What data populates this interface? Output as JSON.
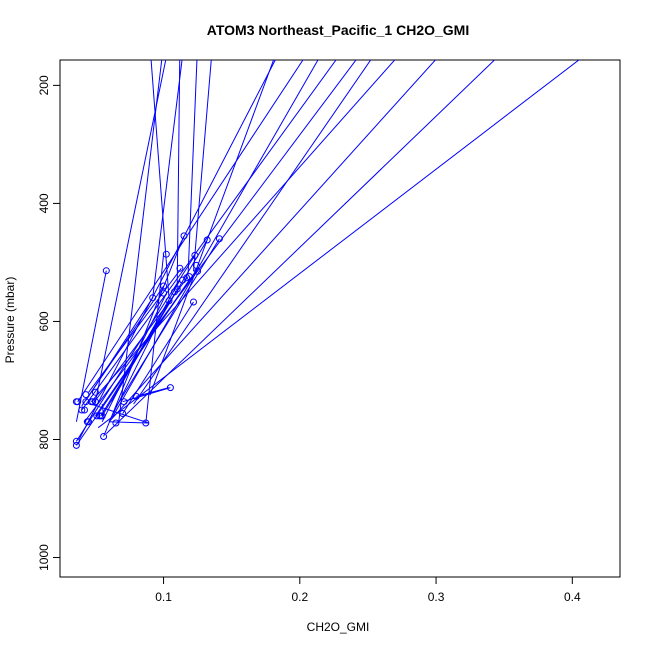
{
  "chart_data": {
    "type": "line",
    "title": "ATOM3 Northeast_Pacific_1 CH2O_GMI",
    "xlabel": "CH2O_GMI",
    "ylabel": "Pressure (mbar)",
    "xlim": [
      0.024,
      0.435
    ],
    "ylim": [
      1033,
      157
    ],
    "y_reversed": true,
    "x_ticks": [
      0.1,
      0.2,
      0.3,
      0.4
    ],
    "x_tick_labels": [
      "0.1",
      "0.2",
      "0.3",
      "0.4"
    ],
    "y_ticks": [
      200,
      400,
      600,
      800,
      1000
    ],
    "y_tick_labels": [
      "200",
      "400",
      "600",
      "800",
      "1000"
    ],
    "grid": false,
    "legend": "none",
    "colors": {
      "series": "#0000ff",
      "axis": "#000000"
    },
    "markers": "open-circle",
    "lines": [
      [
        [
          0.056,
          795
        ],
        [
          0.115,
          455
        ]
      ],
      [
        [
          0.087,
          772
        ],
        [
          0.1,
          486
        ]
      ],
      [
        [
          0.067,
          772
        ],
        [
          0.1,
          130
        ]
      ],
      [
        [
          0.036,
          770
        ],
        [
          0.058,
          514
        ]
      ],
      [
        [
          0.055,
          760
        ],
        [
          0.132,
          462
        ]
      ],
      [
        [
          0.036,
          810
        ],
        [
          0.125,
          510
        ]
      ],
      [
        [
          0.036,
          803
        ],
        [
          0.123,
          488
        ]
      ],
      [
        [
          0.07,
          756
        ],
        [
          0.122,
          567
        ]
      ],
      [
        [
          0.04,
          743
        ],
        [
          0.1,
          540
        ]
      ],
      [
        [
          0.043,
          734
        ],
        [
          0.092,
          560
        ]
      ],
      [
        [
          0.045,
          720
        ],
        [
          0.113,
          510
        ]
      ],
      [
        [
          0.048,
          740
        ],
        [
          0.118,
          524
        ]
      ],
      [
        [
          0.05,
          760
        ],
        [
          0.12,
          526
        ]
      ],
      [
        [
          0.055,
          770
        ],
        [
          0.102,
          553
        ]
      ],
      [
        [
          0.06,
          770
        ],
        [
          0.104,
          565
        ]
      ],
      [
        [
          0.054,
          760
        ],
        [
          0.109,
          550
        ]
      ],
      [
        [
          0.062,
          736
        ],
        [
          0.112,
          530
        ]
      ],
      [
        [
          0.065,
          745
        ],
        [
          0.141,
          460
        ]
      ],
      [
        [
          0.037,
          736
        ],
        [
          0.21,
          130
        ]
      ],
      [
        [
          0.04,
          750
        ],
        [
          0.235,
          130
        ]
      ],
      [
        [
          0.042,
          770
        ],
        [
          0.25,
          130
        ]
      ],
      [
        [
          0.038,
          800
        ],
        [
          0.188,
          130
        ]
      ],
      [
        [
          0.047,
          736
        ],
        [
          0.28,
          130
        ]
      ],
      [
        [
          0.06,
          770
        ],
        [
          0.31,
          130
        ]
      ],
      [
        [
          0.052,
          780
        ],
        [
          0.42,
          130
        ]
      ],
      [
        [
          0.058,
          790
        ],
        [
          0.355,
          130
        ]
      ],
      [
        [
          0.063,
          760
        ],
        [
          0.22,
          130
        ]
      ],
      [
        [
          0.078,
          740
        ],
        [
          0.26,
          130
        ]
      ],
      [
        [
          0.09,
          725
        ],
        [
          0.185,
          130
        ]
      ],
      [
        [
          0.07,
          736
        ],
        [
          0.105,
          712
        ]
      ],
      [
        [
          0.08,
          727
        ],
        [
          0.104,
          712
        ]
      ],
      [
        [
          0.05,
          736
        ],
        [
          0.104,
          130
        ]
      ],
      [
        [
          0.047,
          740
        ],
        [
          0.089,
          772
        ]
      ],
      [
        [
          0.11,
          545
        ],
        [
          0.112,
          130
        ]
      ],
      [
        [
          0.118,
          520
        ],
        [
          0.125,
          130
        ]
      ],
      [
        [
          0.092,
          560
        ],
        [
          0.115,
          130
        ]
      ],
      [
        [
          0.122,
          515
        ],
        [
          0.136,
          130
        ]
      ],
      [
        [
          0.104,
          560
        ],
        [
          0.09,
          130
        ]
      ],
      [
        [
          0.06,
          770
        ],
        [
          0.089,
          772
        ]
      ],
      [
        [
          0.056,
          760
        ],
        [
          0.055,
          740
        ]
      ]
    ],
    "points": [
      [
        0.036,
        810
      ],
      [
        0.036,
        803
      ],
      [
        0.036,
        736
      ],
      [
        0.037,
        736
      ],
      [
        0.04,
        750
      ],
      [
        0.042,
        750
      ],
      [
        0.043,
        724
      ],
      [
        0.043,
        736
      ],
      [
        0.044,
        770
      ],
      [
        0.045,
        770
      ],
      [
        0.047,
        736
      ],
      [
        0.048,
        736
      ],
      [
        0.05,
        736
      ],
      [
        0.05,
        720
      ],
      [
        0.051,
        760
      ],
      [
        0.053,
        760
      ],
      [
        0.054,
        760
      ],
      [
        0.055,
        760
      ],
      [
        0.056,
        795
      ],
      [
        0.058,
        514
      ],
      [
        0.065,
        772
      ],
      [
        0.07,
        756
      ],
      [
        0.071,
        736
      ],
      [
        0.08,
        727
      ],
      [
        0.087,
        772
      ],
      [
        0.092,
        560
      ],
      [
        0.1,
        540
      ],
      [
        0.1,
        552
      ],
      [
        0.102,
        486
      ],
      [
        0.104,
        565
      ],
      [
        0.105,
        712
      ],
      [
        0.108,
        550
      ],
      [
        0.11,
        545
      ],
      [
        0.112,
        510
      ],
      [
        0.114,
        530
      ],
      [
        0.115,
        455
      ],
      [
        0.117,
        526
      ],
      [
        0.119,
        524
      ],
      [
        0.122,
        567
      ],
      [
        0.123,
        488
      ],
      [
        0.124,
        505
      ],
      [
        0.125,
        515
      ],
      [
        0.132,
        462
      ],
      [
        0.141,
        460
      ]
    ]
  }
}
